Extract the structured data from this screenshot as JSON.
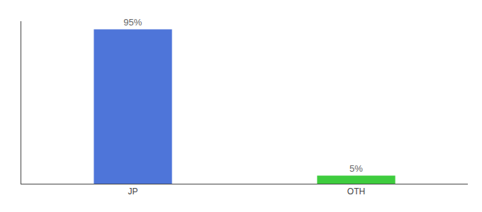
{
  "chart_data": {
    "type": "bar",
    "categories": [
      "JP",
      "OTH"
    ],
    "values": [
      95,
      5
    ],
    "colors": [
      "#4e75d9",
      "#3ecc3e"
    ],
    "value_labels": [
      "95%",
      "5%"
    ],
    "data_labels": true,
    "ylim": [
      0,
      100
    ],
    "tick_labels": "x",
    "grid": false
  }
}
